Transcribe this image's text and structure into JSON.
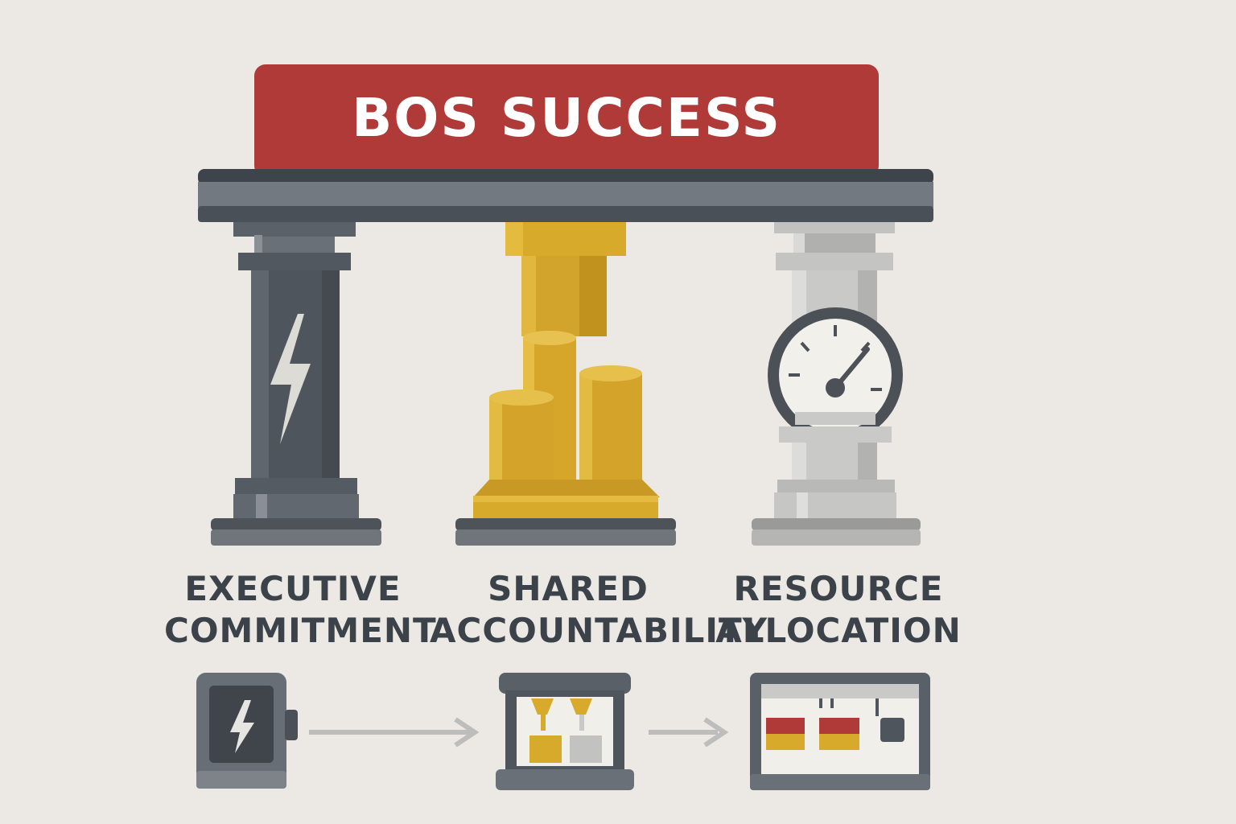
{
  "banner": {
    "title": "BOS SUCCESS"
  },
  "pillars": [
    {
      "line1": "EXECUTIVE",
      "line2": "COMMITMENT",
      "icon": "lightning-bolt-icon"
    },
    {
      "line1": "SHARED",
      "line2": "ACCOUNTABILITY",
      "icon": "cylinders-icon"
    },
    {
      "line1": "RESOURCE",
      "line2": "ALLOCATION",
      "icon": "gauge-icon"
    }
  ],
  "flow": {
    "icons": [
      "power-device-icon",
      "dispensing-machine-icon",
      "control-panel-icon"
    ]
  },
  "colors": {
    "background": "#ece9e4",
    "banner": "#b03a37",
    "dark_gray": "#4f555c",
    "gold": "#d8aa2c",
    "light_gray": "#c9c9c7",
    "text": "#3c4249",
    "arrow": "#bdbdbb"
  }
}
